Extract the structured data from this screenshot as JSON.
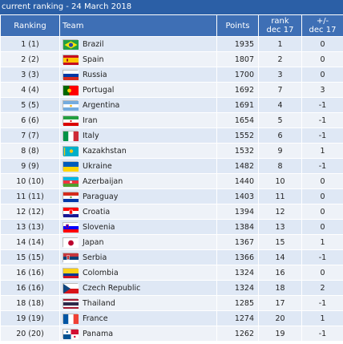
{
  "caption": "current ranking - 24 March 2018",
  "headers": {
    "ranking": "Ranking",
    "team": "Team",
    "points": "Points",
    "rank_line1": "rank",
    "rank_line2": "dec 17",
    "diff_line1": "+/-",
    "diff_line2": "dec 17"
  },
  "rows": [
    {
      "ranking": "1 (1)",
      "team": "Brazil",
      "points": "1935",
      "rank": "1",
      "diff": "0",
      "flag": "brazil"
    },
    {
      "ranking": "2 (2)",
      "team": "Spain",
      "points": "1807",
      "rank": "2",
      "diff": "0",
      "flag": "spain"
    },
    {
      "ranking": "3 (3)",
      "team": "Russia",
      "points": "1700",
      "rank": "3",
      "diff": "0",
      "flag": "russia"
    },
    {
      "ranking": "4 (4)",
      "team": "Portugal",
      "points": "1692",
      "rank": "7",
      "diff": "3",
      "flag": "portugal"
    },
    {
      "ranking": "5 (5)",
      "team": "Argentina",
      "points": "1691",
      "rank": "4",
      "diff": "-1",
      "flag": "argentina"
    },
    {
      "ranking": "6 (6)",
      "team": "Iran",
      "points": "1654",
      "rank": "5",
      "diff": "-1",
      "flag": "iran"
    },
    {
      "ranking": "7 (7)",
      "team": "Italy",
      "points": "1552",
      "rank": "6",
      "diff": "-1",
      "flag": "italy"
    },
    {
      "ranking": "8 (8)",
      "team": "Kazakhstan",
      "points": "1532",
      "rank": "9",
      "diff": "1",
      "flag": "kazakhstan"
    },
    {
      "ranking": "9 (9)",
      "team": "Ukraine",
      "points": "1482",
      "rank": "8",
      "diff": "-1",
      "flag": "ukraine"
    },
    {
      "ranking": "10 (10)",
      "team": "Azerbaijan",
      "points": "1440",
      "rank": "10",
      "diff": "0",
      "flag": "azerbaijan"
    },
    {
      "ranking": "11 (11)",
      "team": "Paraguay",
      "points": "1403",
      "rank": "11",
      "diff": "0",
      "flag": "paraguay"
    },
    {
      "ranking": "12 (12)",
      "team": "Croatia",
      "points": "1394",
      "rank": "12",
      "diff": "0",
      "flag": "croatia"
    },
    {
      "ranking": "13 (13)",
      "team": "Slovenia",
      "points": "1384",
      "rank": "13",
      "diff": "0",
      "flag": "slovenia"
    },
    {
      "ranking": "14 (14)",
      "team": "Japan",
      "points": "1367",
      "rank": "15",
      "diff": "1",
      "flag": "japan"
    },
    {
      "ranking": "15 (15)",
      "team": "Serbia",
      "points": "1366",
      "rank": "14",
      "diff": "-1",
      "flag": "serbia"
    },
    {
      "ranking": "16 (16)",
      "team": "Colombia",
      "points": "1324",
      "rank": "16",
      "diff": "0",
      "flag": "colombia"
    },
    {
      "ranking": "16 (16)",
      "team": "Czech Republic",
      "points": "1324",
      "rank": "18",
      "diff": "2",
      "flag": "czech"
    },
    {
      "ranking": "18 (18)",
      "team": "Thailand",
      "points": "1285",
      "rank": "17",
      "diff": "-1",
      "flag": "thailand"
    },
    {
      "ranking": "19 (19)",
      "team": "France",
      "points": "1274",
      "rank": "20",
      "diff": "1",
      "flag": "france"
    },
    {
      "ranking": "20 (20)",
      "team": "Panama",
      "points": "1262",
      "rank": "19",
      "diff": "-1",
      "flag": "panama"
    }
  ]
}
